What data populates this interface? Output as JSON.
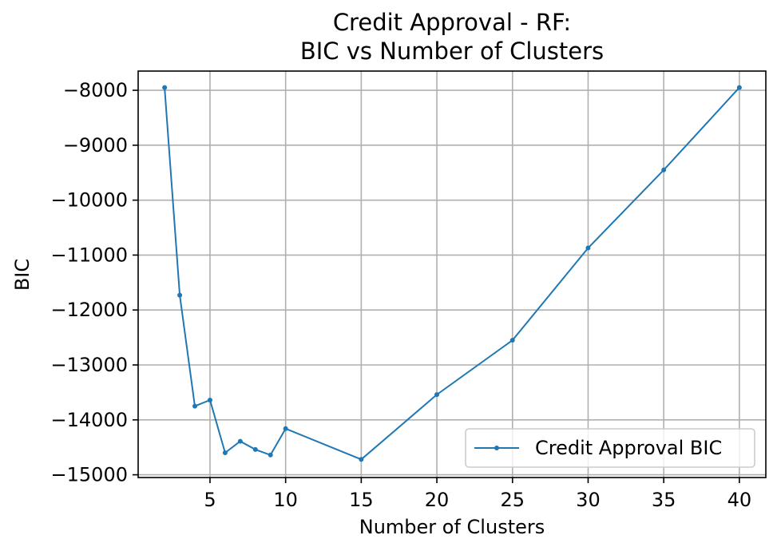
{
  "chart_data": {
    "type": "line",
    "title_lines": [
      "Credit Approval - RF:",
      "BIC vs Number of Clusters"
    ],
    "xlabel": "Number of Clusters",
    "ylabel": "BIC",
    "xlim": [
      0.25,
      41.75
    ],
    "ylim": [
      -15050,
      -7650
    ],
    "xticks": [
      5,
      10,
      15,
      20,
      25,
      30,
      35,
      40
    ],
    "xtick_labels": [
      "5",
      "10",
      "15",
      "20",
      "25",
      "30",
      "35",
      "40"
    ],
    "yticks": [
      -8000,
      -9000,
      -10000,
      -11000,
      -12000,
      -13000,
      -14000,
      -15000
    ],
    "ytick_labels": [
      "−8000",
      "−9000",
      "−10000",
      "−11000",
      "−12000",
      "−13000",
      "−14000",
      "−15000"
    ],
    "grid": true,
    "legend_position": "lower-right",
    "series": [
      {
        "name": "Credit Approval BIC",
        "color": "#1f77b4",
        "x": [
          2,
          3,
          4,
          5,
          6,
          7,
          8,
          9,
          10,
          15,
          20,
          25,
          30,
          35,
          40
        ],
        "y": [
          -7950,
          -11730,
          -13750,
          -13640,
          -14600,
          -14390,
          -14540,
          -14640,
          -14160,
          -14720,
          -13540,
          -12550,
          -10870,
          -9450,
          -7950
        ]
      }
    ]
  }
}
